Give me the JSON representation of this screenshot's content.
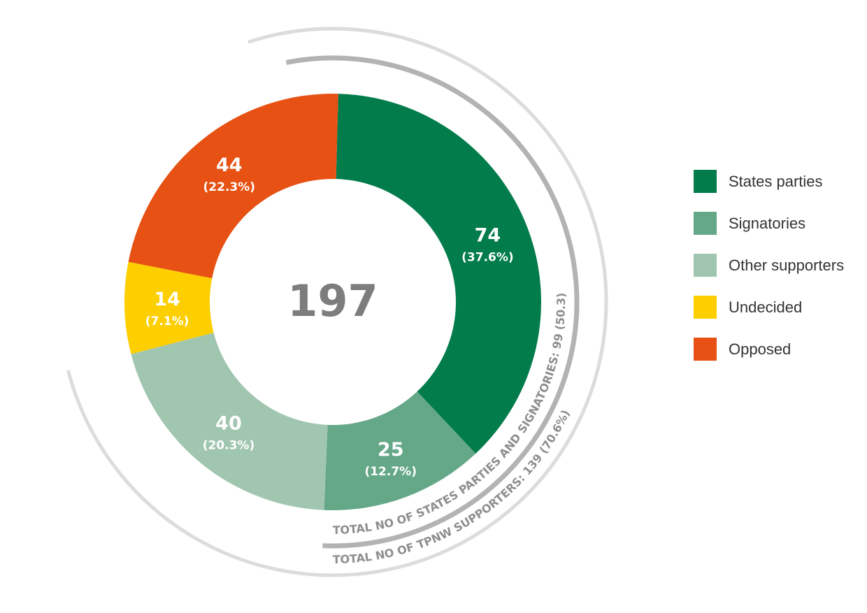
{
  "chart_data": {
    "type": "pie",
    "total": "197",
    "slices": [
      {
        "name": "States parties",
        "value": 74,
        "value_label": "74",
        "percent_label": "(37.6%)",
        "color": "#027c4b"
      },
      {
        "name": "Signatories",
        "value": 25,
        "value_label": "25",
        "percent_label": "(12.7%)",
        "color": "#65a888"
      },
      {
        "name": "Other supporters",
        "value": 40,
        "value_label": "40",
        "percent_label": "(20.3%)",
        "color": "#a1c6b0"
      },
      {
        "name": "Undecided",
        "value": 14,
        "value_label": "14",
        "percent_label": "(7.1%)",
        "color": "#fdcf00"
      },
      {
        "name": "Opposed",
        "value": 44,
        "value_label": "44",
        "percent_label": "(22.3%)",
        "color": "#e75113"
      }
    ],
    "annotations": [
      {
        "text": "TOTAL NO OF STATES PARTIES AND SIGNATORIES: 99 (50.3)",
        "value": 99,
        "color": "#b3b3b3"
      },
      {
        "text": "TOTAL NO OF TPNW SUPPORTERS: 139 (70.6%)",
        "value": 139,
        "color": "#dcdcdc"
      }
    ],
    "legend_position": "right"
  }
}
